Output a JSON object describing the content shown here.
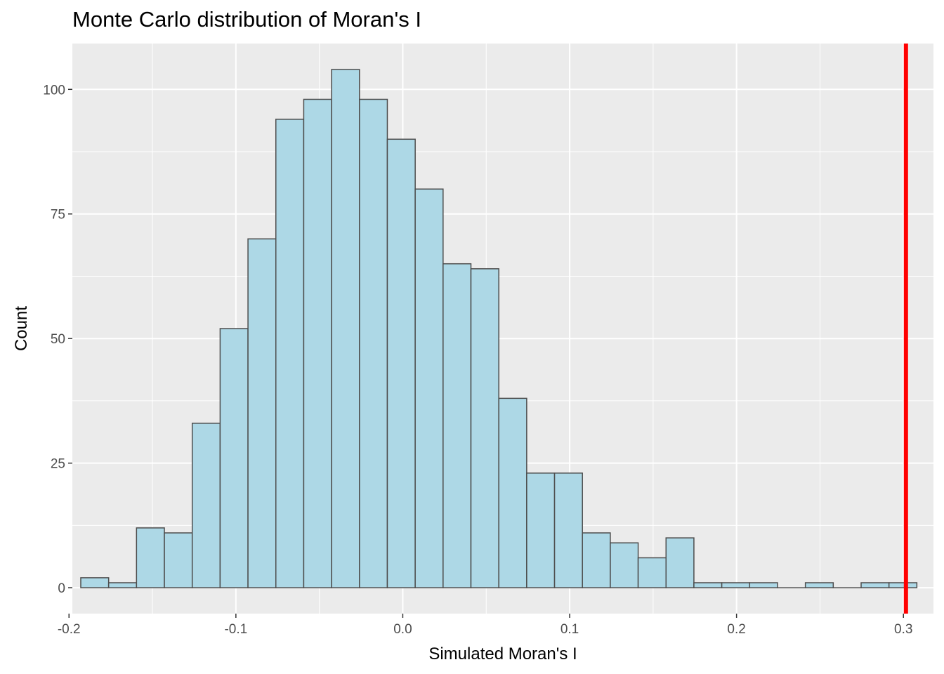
{
  "chart_data": {
    "type": "bar",
    "title": "Monte Carlo distribution of Moran's I",
    "xlabel": "Simulated Moran's I",
    "ylabel": "Count",
    "xlim": [
      -0.198,
      0.318
    ],
    "ylim": [
      -5.2,
      109.2
    ],
    "xticks": [
      -0.2,
      -0.1,
      0.0,
      0.1,
      0.2,
      0.3
    ],
    "xtick_labels": [
      "-0.2",
      "-0.1",
      "0.0",
      "0.1",
      "0.2",
      "0.3"
    ],
    "yticks": [
      0,
      25,
      50,
      75,
      100
    ],
    "ytick_labels": [
      "0",
      "25",
      "50",
      "75",
      "100"
    ],
    "bin_width": 0.0167,
    "bin_centers": [
      -0.1846,
      -0.1679,
      -0.1512,
      -0.1345,
      -0.1178,
      -0.1011,
      -0.0844,
      -0.0677,
      -0.051,
      -0.0343,
      -0.0176,
      -0.0009,
      0.0158,
      0.0325,
      0.0492,
      0.0659,
      0.0826,
      0.0993,
      0.116,
      0.1327,
      0.1494,
      0.1661,
      0.1828,
      0.1995,
      0.2162,
      0.2329,
      0.2496,
      0.2663,
      0.283,
      0.2997
    ],
    "values": [
      2,
      1,
      12,
      11,
      33,
      52,
      70,
      94,
      98,
      104,
      98,
      90,
      80,
      65,
      64,
      38,
      23,
      23,
      11,
      9,
      6,
      10,
      1,
      1,
      1,
      0,
      1,
      0,
      1,
      1
    ],
    "vline": {
      "x": 0.3015,
      "color": "#ff0000"
    },
    "colors": {
      "panel": "#ebebeb",
      "grid": "#ffffff",
      "bar_fill": "#add8e6",
      "bar_stroke": "#4d4d4d"
    },
    "grid": true,
    "legend": "none"
  }
}
